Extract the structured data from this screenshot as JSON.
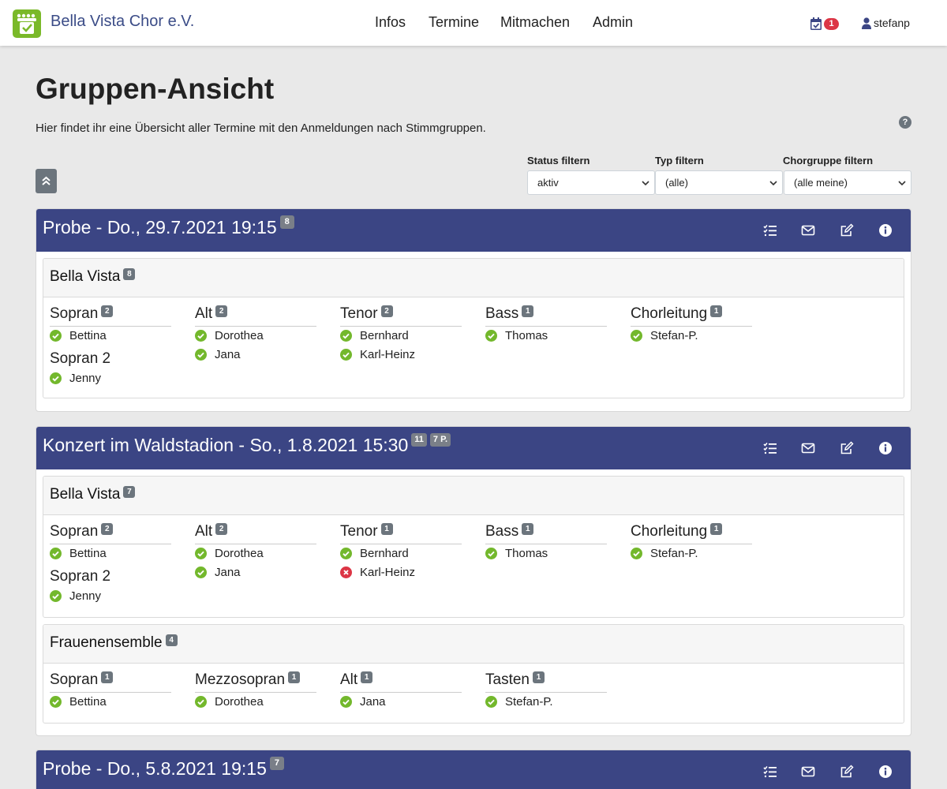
{
  "nav": {
    "brand": "Bella Vista Chor e.V.",
    "links": [
      "Infos",
      "Termine",
      "Mitmachen",
      "Admin"
    ],
    "notification_count": "1",
    "user": "stefanp"
  },
  "page": {
    "title": "Gruppen-Ansicht",
    "description": "Hier findet ihr eine Übersicht aller Termine mit den Anmeldungen nach Stimmgruppen.",
    "help": "?"
  },
  "filters": [
    {
      "label": "Status filtern",
      "value": "aktiv"
    },
    {
      "label": "Typ filtern",
      "value": "(alle)"
    },
    {
      "label": "Chorgruppe filtern",
      "value": "(alle meine)"
    }
  ],
  "events": [
    {
      "title": "Probe - Do., 29.7.2021 19:15",
      "count": "8",
      "groups": [
        {
          "name": "Bella Vista",
          "count": "8",
          "voices": [
            {
              "name": "Sopran",
              "count": "2",
              "members": [
                {
                  "name": "Bettina",
                  "status": "ok"
                }
              ],
              "sub": {
                "name": "Sopran 2",
                "members": [
                  {
                    "name": "Jenny",
                    "status": "ok"
                  }
                ]
              }
            },
            {
              "name": "Alt",
              "count": "2",
              "members": [
                {
                  "name": "Dorothea",
                  "status": "ok"
                },
                {
                  "name": "Jana",
                  "status": "ok"
                }
              ]
            },
            {
              "name": "Tenor",
              "count": "2",
              "members": [
                {
                  "name": "Bernhard",
                  "status": "ok"
                },
                {
                  "name": "Karl-Heinz",
                  "status": "ok"
                }
              ]
            },
            {
              "name": "Bass",
              "count": "1",
              "members": [
                {
                  "name": "Thomas",
                  "status": "ok"
                }
              ]
            },
            {
              "name": "Chorleitung",
              "count": "1",
              "members": [
                {
                  "name": "Stefan-P.",
                  "status": "ok"
                }
              ]
            }
          ]
        }
      ]
    },
    {
      "title": "Konzert im Waldstadion - So., 1.8.2021 15:30",
      "count": "11",
      "extra": "7 P.",
      "groups": [
        {
          "name": "Bella Vista",
          "count": "7",
          "voices": [
            {
              "name": "Sopran",
              "count": "2",
              "members": [
                {
                  "name": "Bettina",
                  "status": "ok"
                }
              ],
              "sub": {
                "name": "Sopran 2",
                "members": [
                  {
                    "name": "Jenny",
                    "status": "ok"
                  }
                ]
              }
            },
            {
              "name": "Alt",
              "count": "2",
              "members": [
                {
                  "name": "Dorothea",
                  "status": "ok"
                },
                {
                  "name": "Jana",
                  "status": "ok"
                }
              ]
            },
            {
              "name": "Tenor",
              "count": "1",
              "members": [
                {
                  "name": "Bernhard",
                  "status": "ok"
                },
                {
                  "name": "Karl-Heinz",
                  "status": "no"
                }
              ]
            },
            {
              "name": "Bass",
              "count": "1",
              "members": [
                {
                  "name": "Thomas",
                  "status": "ok"
                }
              ]
            },
            {
              "name": "Chorleitung",
              "count": "1",
              "members": [
                {
                  "name": "Stefan-P.",
                  "status": "ok"
                }
              ]
            }
          ]
        },
        {
          "name": "Frauenensemble",
          "count": "4",
          "voices": [
            {
              "name": "Sopran",
              "count": "1",
              "members": [
                {
                  "name": "Bettina",
                  "status": "ok"
                }
              ]
            },
            {
              "name": "Mezzosopran",
              "count": "1",
              "members": [
                {
                  "name": "Dorothea",
                  "status": "ok"
                }
              ]
            },
            {
              "name": "Alt",
              "count": "1",
              "members": [
                {
                  "name": "Jana",
                  "status": "ok"
                }
              ]
            },
            {
              "name": "Tasten",
              "count": "1",
              "members": [
                {
                  "name": "Stefan-P.",
                  "status": "ok"
                }
              ]
            }
          ]
        }
      ]
    },
    {
      "title": "Probe - Do., 5.8.2021 19:15",
      "count": "7",
      "groups": []
    }
  ],
  "icons": {
    "header_actions": [
      "checklist-icon",
      "envelope-icon",
      "edit-icon",
      "info-icon"
    ],
    "status_ok": "check-circle-icon",
    "status_no": "x-circle-icon"
  },
  "colors": {
    "brand": "#3b4c87",
    "card_header": "#3b4584",
    "logo": "#7ab929",
    "ok": "#73b82c",
    "no": "#dc3545",
    "badge": "#7a7f88"
  }
}
